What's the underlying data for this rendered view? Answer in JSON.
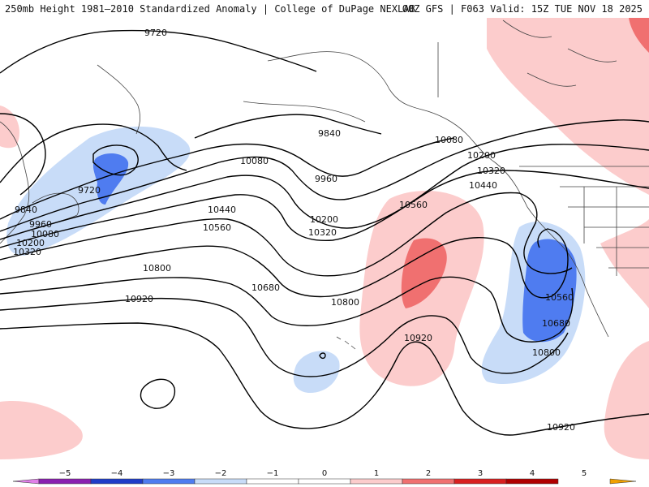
{
  "header": {
    "left_title": "250mb Height 1981–2010 Standardized Anomaly | College of DuPage NEXLAB",
    "right_title": "00Z GFS | F063 Valid: 15Z TUE NOV 18 2025"
  },
  "colors": {
    "neg5": "#e080e8",
    "neg4": "#8a1fb0",
    "neg3": "#1f3cc8",
    "neg2": "#4f7cf0",
    "neg1": "#c8dcf8",
    "zero": "#ffffff",
    "pos1": "#fccccc",
    "pos2": "#f07070",
    "pos3": "#d82020",
    "pos4": "#b00000",
    "pos5": "#f0a000",
    "contour": "#000000",
    "coast": "#444444"
  },
  "contour_labels": [
    {
      "text": "9720"
    },
    {
      "text": "9720"
    },
    {
      "text": "9840"
    },
    {
      "text": "9840"
    },
    {
      "text": "9960"
    },
    {
      "text": "9960"
    },
    {
      "text": "10080"
    },
    {
      "text": "10080"
    },
    {
      "text": "10080"
    },
    {
      "text": "10200"
    },
    {
      "text": "10200"
    },
    {
      "text": "10200"
    },
    {
      "text": "10320"
    },
    {
      "text": "10320"
    },
    {
      "text": "10320"
    },
    {
      "text": "10440"
    },
    {
      "text": "10440"
    },
    {
      "text": "10560"
    },
    {
      "text": "10560"
    },
    {
      "text": "10560"
    },
    {
      "text": "10680"
    },
    {
      "text": "10680"
    },
    {
      "text": "10800"
    },
    {
      "text": "10800"
    },
    {
      "text": "10800"
    },
    {
      "text": "10920"
    },
    {
      "text": "10920"
    },
    {
      "text": "10920"
    }
  ],
  "colorbar": {
    "ticks": [
      "−5",
      "−4",
      "−3",
      "−2",
      "−1",
      "0",
      "1",
      "2",
      "3",
      "4",
      "5"
    ]
  }
}
